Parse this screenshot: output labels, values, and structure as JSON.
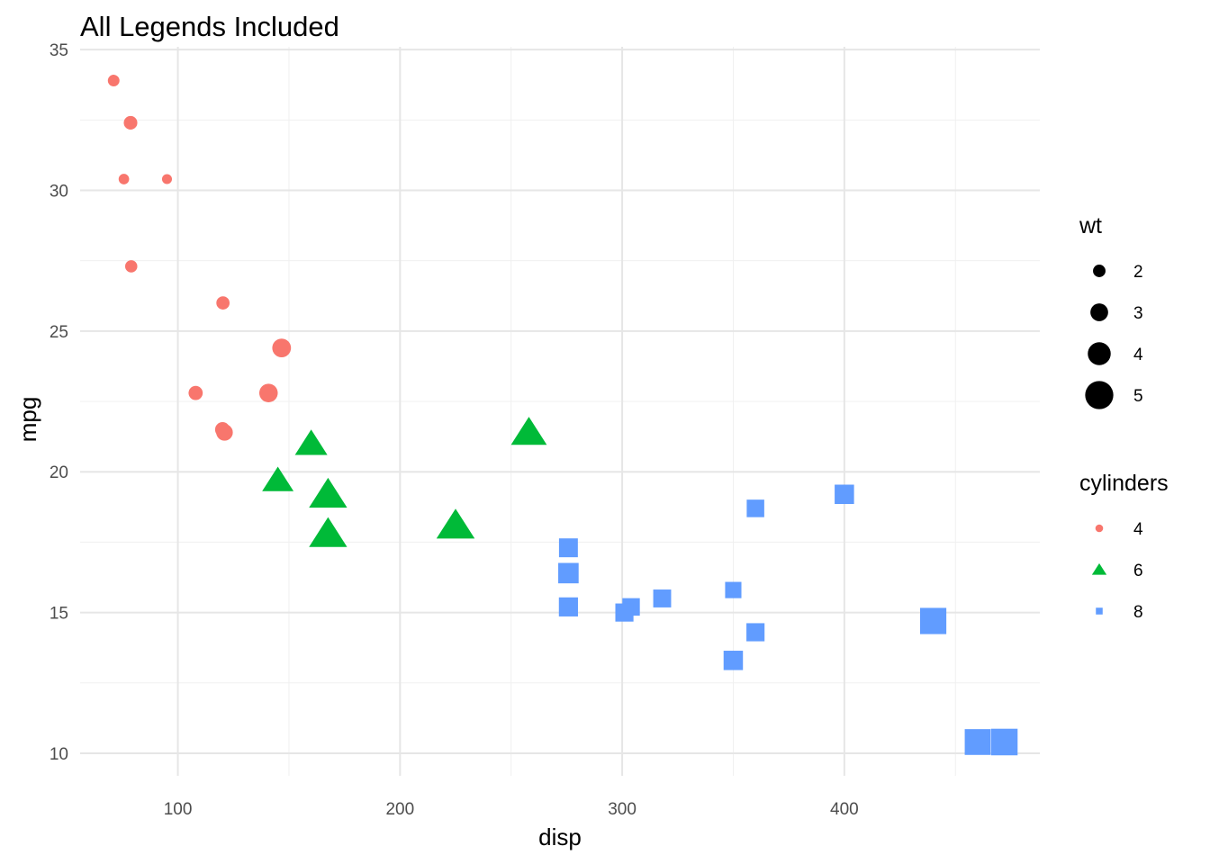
{
  "chart_data": {
    "type": "scatter",
    "title": "All Legends Included",
    "xlabel": "disp",
    "ylabel": "mpg",
    "xlim": [
      56,
      488
    ],
    "ylim": [
      9.2,
      35.1
    ],
    "x_ticks": [
      100,
      200,
      300,
      400
    ],
    "y_ticks": [
      10,
      15,
      20,
      25,
      30,
      35
    ],
    "x_tick_labels": [
      "100",
      "200",
      "300",
      "400"
    ],
    "y_tick_labels": [
      "10",
      "15",
      "20",
      "25",
      "30",
      "35"
    ],
    "grid": true,
    "theme": "minimal",
    "legend_position": "right",
    "size_legend": {
      "title": "wt",
      "entries": [
        {
          "label": "2",
          "value": 2
        },
        {
          "label": "3",
          "value": 3
        },
        {
          "label": "4",
          "value": 4
        },
        {
          "label": "5",
          "value": 5
        }
      ]
    },
    "group_legend": {
      "title": "cylinders",
      "entries": [
        {
          "label": "4",
          "key": "4",
          "shape": "circle",
          "color": "#F8766D"
        },
        {
          "label": "6",
          "key": "6",
          "shape": "triangle",
          "color": "#00BA38"
        },
        {
          "label": "8",
          "key": "8",
          "shape": "square",
          "color": "#619CFF"
        }
      ]
    },
    "series": [
      {
        "name": "4",
        "shape": "circle",
        "color": "#F8766D",
        "points": [
          {
            "x": 71.1,
            "y": 33.9,
            "wt": 1.835
          },
          {
            "x": 78.7,
            "y": 32.4,
            "wt": 2.2
          },
          {
            "x": 75.7,
            "y": 30.4,
            "wt": 1.615
          },
          {
            "x": 95.1,
            "y": 30.4,
            "wt": 1.513
          },
          {
            "x": 79.0,
            "y": 27.3,
            "wt": 1.935
          },
          {
            "x": 120.3,
            "y": 26.0,
            "wt": 2.14
          },
          {
            "x": 146.7,
            "y": 24.4,
            "wt": 3.19
          },
          {
            "x": 108.0,
            "y": 22.8,
            "wt": 2.32
          },
          {
            "x": 140.8,
            "y": 22.8,
            "wt": 3.15
          },
          {
            "x": 120.1,
            "y": 21.5,
            "wt": 2.465
          },
          {
            "x": 121.0,
            "y": 21.4,
            "wt": 2.78
          }
        ]
      },
      {
        "name": "6",
        "shape": "triangle",
        "color": "#00BA38",
        "points": [
          {
            "x": 160.0,
            "y": 21.0,
            "wt": 2.62
          },
          {
            "x": 160.0,
            "y": 21.0,
            "wt": 2.875
          },
          {
            "x": 258.0,
            "y": 21.4,
            "wt": 3.215
          },
          {
            "x": 145.0,
            "y": 19.7,
            "wt": 2.77
          },
          {
            "x": 167.6,
            "y": 19.2,
            "wt": 3.44
          },
          {
            "x": 167.6,
            "y": 17.8,
            "wt": 3.44
          },
          {
            "x": 225.0,
            "y": 18.1,
            "wt": 3.46
          }
        ]
      },
      {
        "name": "8",
        "shape": "square",
        "color": "#619CFF",
        "points": [
          {
            "x": 360.0,
            "y": 18.7,
            "wt": 3.44
          },
          {
            "x": 400.0,
            "y": 19.2,
            "wt": 3.845
          },
          {
            "x": 275.8,
            "y": 17.3,
            "wt": 3.73
          },
          {
            "x": 275.8,
            "y": 16.4,
            "wt": 4.07
          },
          {
            "x": 275.8,
            "y": 15.2,
            "wt": 3.78
          },
          {
            "x": 304.0,
            "y": 15.2,
            "wt": 3.435
          },
          {
            "x": 301.0,
            "y": 15.0,
            "wt": 3.57
          },
          {
            "x": 318.0,
            "y": 15.5,
            "wt": 3.52
          },
          {
            "x": 350.0,
            "y": 15.8,
            "wt": 3.17
          },
          {
            "x": 360.0,
            "y": 14.3,
            "wt": 3.57
          },
          {
            "x": 350.0,
            "y": 13.3,
            "wt": 3.84
          },
          {
            "x": 440.0,
            "y": 14.7,
            "wt": 5.345
          },
          {
            "x": 460.0,
            "y": 10.4,
            "wt": 5.25
          },
          {
            "x": 472.0,
            "y": 10.4,
            "wt": 5.424
          }
        ]
      }
    ]
  }
}
